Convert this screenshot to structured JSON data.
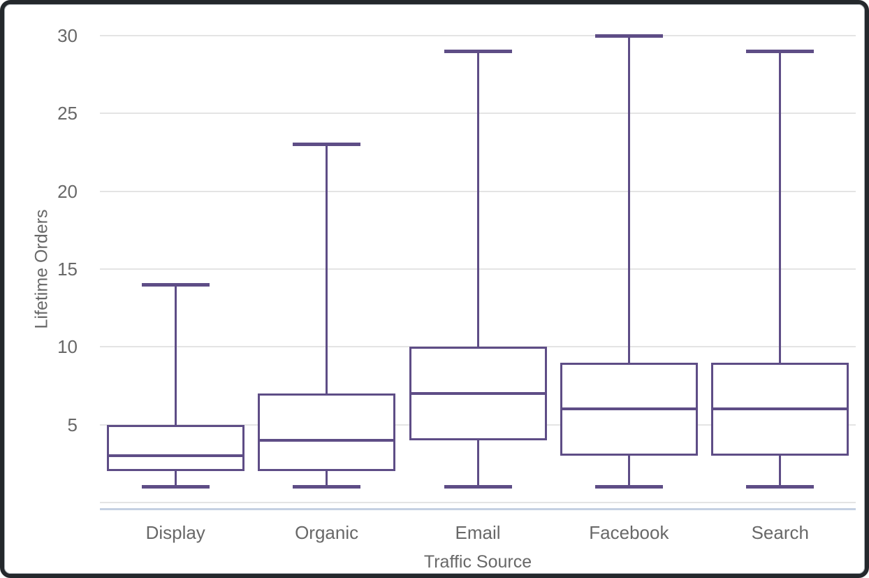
{
  "chart_data": {
    "type": "box",
    "title": "",
    "xlabel": "Traffic Source",
    "ylabel": "Lifetime Orders",
    "categories": [
      "Display",
      "Organic",
      "Email",
      "Facebook",
      "Search"
    ],
    "boxes": [
      {
        "category": "Display",
        "min": 1,
        "q1": 2,
        "median": 3,
        "q3": 5,
        "max": 14
      },
      {
        "category": "Organic",
        "min": 1,
        "q1": 2,
        "median": 4,
        "q3": 7,
        "max": 23
      },
      {
        "category": "Email",
        "min": 1,
        "q1": 4,
        "median": 7,
        "q3": 10,
        "max": 29
      },
      {
        "category": "Facebook",
        "min": 1,
        "q1": 3,
        "median": 6,
        "q3": 9,
        "max": 30
      },
      {
        "category": "Search",
        "min": 1,
        "q1": 3,
        "median": 6,
        "q3": 9,
        "max": 29
      }
    ],
    "ylim": [
      0,
      30
    ],
    "yticks": [
      5,
      10,
      15,
      20,
      25,
      30
    ],
    "ygrid": [
      0,
      5,
      10,
      15,
      20,
      25,
      30
    ],
    "legend": "none",
    "grid": "horizontal",
    "colors": {
      "box_stroke": "#5e4d86",
      "box_fill": "#ffffff",
      "gridline": "#e4e4e4",
      "axis_line": "#c5d0e2",
      "label_text": "#686868"
    }
  }
}
